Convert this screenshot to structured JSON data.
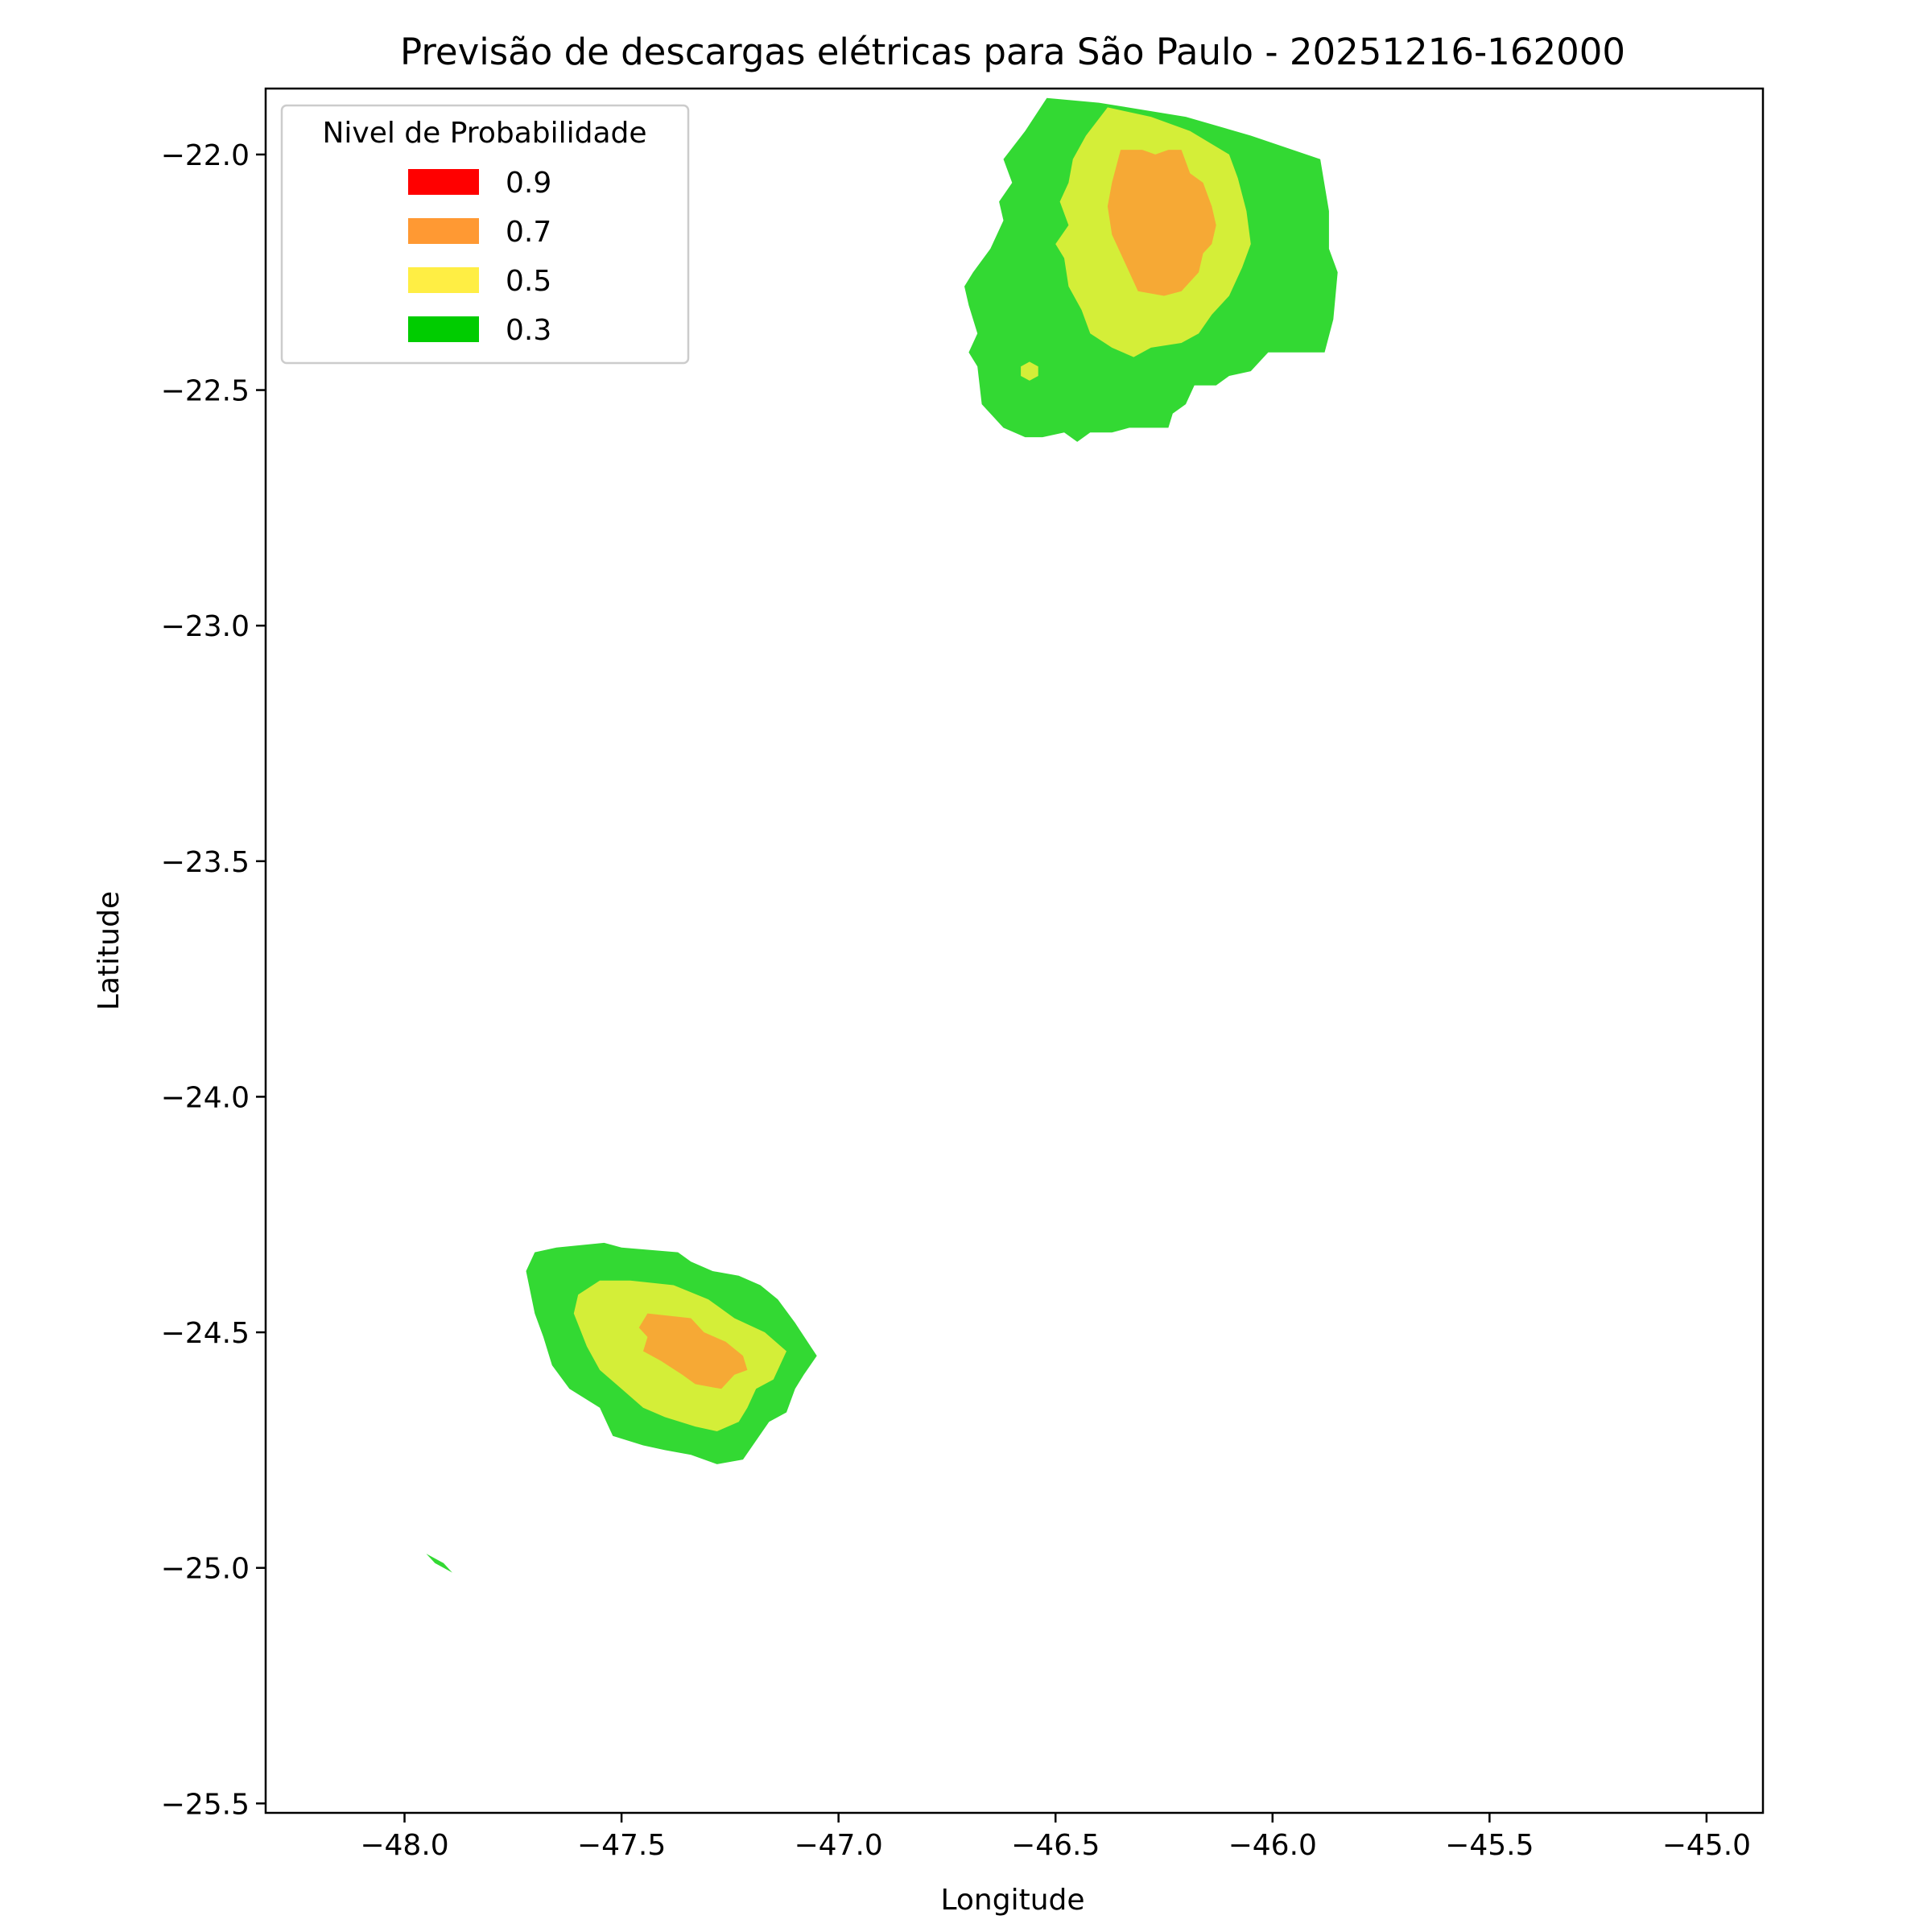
{
  "chart_data": {
    "type": "filled_contour",
    "title": "Previsão de descargas elétricas para São Paulo - 20251216-162000",
    "xlabel": "Longitude",
    "ylabel": "Latitude",
    "xlim": [
      -48.32,
      -44.87
    ],
    "ylim": [
      -25.52,
      -21.86
    ],
    "xticks": [
      -48.0,
      -47.5,
      -47.0,
      -46.5,
      -46.0,
      -45.5,
      -45.0
    ],
    "yticks": [
      -22.0,
      -22.5,
      -23.0,
      -23.5,
      -24.0,
      -24.5,
      -25.0,
      -25.5
    ],
    "xtick_labels": [
      "−48.0",
      "−47.5",
      "−47.0",
      "−46.5",
      "−46.0",
      "−45.5",
      "−45.0"
    ],
    "ytick_labels": [
      "−22.0",
      "−22.5",
      "−23.0",
      "−23.5",
      "−24.0",
      "−24.5",
      "−25.0",
      "−25.5"
    ],
    "grid": false,
    "legend": {
      "title": "Nivel de Probabilidade",
      "location": "upper-left",
      "entries": [
        {
          "label": "0.9",
          "color": "#ff0000"
        },
        {
          "label": "0.7",
          "color": "#ff9933"
        },
        {
          "label": "0.5",
          "color": "#ffee44"
        },
        {
          "label": "0.3",
          "color": "#00cc00"
        }
      ]
    },
    "level_colors": {
      "0.3": "#33d933",
      "0.5": "#d4ee38",
      "0.7": "#f6a935"
    },
    "regions": [
      {
        "name": "north-cell",
        "level": 0.3,
        "points": [
          [
            -46.52,
            -21.88
          ],
          [
            -46.4,
            -21.89
          ],
          [
            -46.2,
            -21.92
          ],
          [
            -46.05,
            -21.96
          ],
          [
            -45.89,
            -22.01
          ],
          [
            -45.87,
            -22.12
          ],
          [
            -45.87,
            -22.2
          ],
          [
            -45.85,
            -22.25
          ],
          [
            -45.86,
            -22.35
          ],
          [
            -45.88,
            -22.42
          ],
          [
            -46.01,
            -22.42
          ],
          [
            -46.05,
            -22.46
          ],
          [
            -46.1,
            -22.47
          ],
          [
            -46.13,
            -22.49
          ],
          [
            -46.18,
            -22.49
          ],
          [
            -46.2,
            -22.53
          ],
          [
            -46.23,
            -22.55
          ],
          [
            -46.24,
            -22.58
          ],
          [
            -46.33,
            -22.58
          ],
          [
            -46.37,
            -22.59
          ],
          [
            -46.42,
            -22.59
          ],
          [
            -46.45,
            -22.61
          ],
          [
            -46.48,
            -22.59
          ],
          [
            -46.53,
            -22.6
          ],
          [
            -46.57,
            -22.6
          ],
          [
            -46.62,
            -22.58
          ],
          [
            -46.65,
            -22.55
          ],
          [
            -46.67,
            -22.53
          ],
          [
            -46.68,
            -22.45
          ],
          [
            -46.7,
            -22.42
          ],
          [
            -46.68,
            -22.38
          ],
          [
            -46.7,
            -22.32
          ],
          [
            -46.71,
            -22.28
          ],
          [
            -46.69,
            -22.25
          ],
          [
            -46.65,
            -22.2
          ],
          [
            -46.62,
            -22.14
          ],
          [
            -46.63,
            -22.1
          ],
          [
            -46.6,
            -22.06
          ],
          [
            -46.62,
            -22.01
          ],
          [
            -46.57,
            -21.95
          ]
        ]
      },
      {
        "name": "north-cell",
        "level": 0.5,
        "points": [
          [
            -46.38,
            -21.9
          ],
          [
            -46.28,
            -21.92
          ],
          [
            -46.19,
            -21.95
          ],
          [
            -46.1,
            -22.0
          ],
          [
            -46.08,
            -22.05
          ],
          [
            -46.06,
            -22.12
          ],
          [
            -46.05,
            -22.19
          ],
          [
            -46.07,
            -22.24
          ],
          [
            -46.1,
            -22.3
          ],
          [
            -46.14,
            -22.34
          ],
          [
            -46.17,
            -22.38
          ],
          [
            -46.21,
            -22.4
          ],
          [
            -46.28,
            -22.41
          ],
          [
            -46.32,
            -22.43
          ],
          [
            -46.37,
            -22.41
          ],
          [
            -46.42,
            -22.38
          ],
          [
            -46.44,
            -22.33
          ],
          [
            -46.47,
            -22.28
          ],
          [
            -46.48,
            -22.22
          ],
          [
            -46.5,
            -22.19
          ],
          [
            -46.47,
            -22.15
          ],
          [
            -46.49,
            -22.1
          ],
          [
            -46.47,
            -22.06
          ],
          [
            -46.46,
            -22.01
          ],
          [
            -46.43,
            -21.96
          ]
        ]
      },
      {
        "name": "north-cell",
        "level": 0.7,
        "points": [
          [
            -46.35,
            -21.99
          ],
          [
            -46.3,
            -21.99
          ],
          [
            -46.27,
            -22.0
          ],
          [
            -46.24,
            -21.99
          ],
          [
            -46.21,
            -21.99
          ],
          [
            -46.19,
            -22.04
          ],
          [
            -46.16,
            -22.06
          ],
          [
            -46.14,
            -22.11
          ],
          [
            -46.13,
            -22.15
          ],
          [
            -46.14,
            -22.19
          ],
          [
            -46.16,
            -22.21
          ],
          [
            -46.17,
            -22.25
          ],
          [
            -46.21,
            -22.29
          ],
          [
            -46.25,
            -22.3
          ],
          [
            -46.31,
            -22.29
          ],
          [
            -46.33,
            -22.25
          ],
          [
            -46.35,
            -22.21
          ],
          [
            -46.37,
            -22.17
          ],
          [
            -46.38,
            -22.11
          ],
          [
            -46.37,
            -22.06
          ]
        ]
      },
      {
        "name": "north-dot",
        "level": 0.5,
        "points": [
          [
            -46.56,
            -22.44
          ],
          [
            -46.54,
            -22.45
          ],
          [
            -46.54,
            -22.47
          ],
          [
            -46.56,
            -22.48
          ],
          [
            -46.58,
            -22.47
          ],
          [
            -46.58,
            -22.45
          ]
        ]
      },
      {
        "name": "south-cell",
        "level": 0.3,
        "points": [
          [
            -47.7,
            -24.33
          ],
          [
            -47.65,
            -24.32
          ],
          [
            -47.54,
            -24.31
          ],
          [
            -47.5,
            -24.32
          ],
          [
            -47.37,
            -24.33
          ],
          [
            -47.34,
            -24.35
          ],
          [
            -47.29,
            -24.37
          ],
          [
            -47.23,
            -24.38
          ],
          [
            -47.18,
            -24.4
          ],
          [
            -47.14,
            -24.43
          ],
          [
            -47.1,
            -24.48
          ],
          [
            -47.05,
            -24.55
          ],
          [
            -47.08,
            -24.59
          ],
          [
            -47.1,
            -24.62
          ],
          [
            -47.12,
            -24.67
          ],
          [
            -47.16,
            -24.69
          ],
          [
            -47.22,
            -24.77
          ],
          [
            -47.28,
            -24.78
          ],
          [
            -47.34,
            -24.76
          ],
          [
            -47.4,
            -24.75
          ],
          [
            -47.45,
            -24.74
          ],
          [
            -47.52,
            -24.72
          ],
          [
            -47.55,
            -24.66
          ],
          [
            -47.62,
            -24.62
          ],
          [
            -47.66,
            -24.57
          ],
          [
            -47.68,
            -24.51
          ],
          [
            -47.7,
            -24.46
          ],
          [
            -47.72,
            -24.37
          ]
        ]
      },
      {
        "name": "south-cell",
        "level": 0.5,
        "points": [
          [
            -47.6,
            -24.42
          ],
          [
            -47.55,
            -24.39
          ],
          [
            -47.48,
            -24.39
          ],
          [
            -47.38,
            -24.4
          ],
          [
            -47.3,
            -24.43
          ],
          [
            -47.24,
            -24.47
          ],
          [
            -47.17,
            -24.5
          ],
          [
            -47.12,
            -24.54
          ],
          [
            -47.15,
            -24.6
          ],
          [
            -47.19,
            -24.62
          ],
          [
            -47.21,
            -24.66
          ],
          [
            -47.23,
            -24.69
          ],
          [
            -47.28,
            -24.71
          ],
          [
            -47.33,
            -24.7
          ],
          [
            -47.4,
            -24.68
          ],
          [
            -47.45,
            -24.66
          ],
          [
            -47.5,
            -24.62
          ],
          [
            -47.55,
            -24.58
          ],
          [
            -47.58,
            -24.53
          ],
          [
            -47.61,
            -24.46
          ]
        ]
      },
      {
        "name": "south-cell",
        "level": 0.7,
        "points": [
          [
            -47.44,
            -24.46
          ],
          [
            -47.34,
            -24.47
          ],
          [
            -47.31,
            -24.5
          ],
          [
            -47.26,
            -24.52
          ],
          [
            -47.22,
            -24.55
          ],
          [
            -47.21,
            -24.58
          ],
          [
            -47.24,
            -24.59
          ],
          [
            -47.27,
            -24.62
          ],
          [
            -47.33,
            -24.61
          ],
          [
            -47.36,
            -24.59
          ],
          [
            -47.41,
            -24.56
          ],
          [
            -47.45,
            -24.54
          ],
          [
            -47.44,
            -24.51
          ],
          [
            -47.46,
            -24.49
          ]
        ]
      },
      {
        "name": "south-sliver",
        "level": 0.3,
        "points": [
          [
            -47.95,
            -24.97
          ],
          [
            -47.91,
            -24.99
          ],
          [
            -47.89,
            -25.01
          ],
          [
            -47.93,
            -24.99
          ]
        ]
      }
    ]
  }
}
